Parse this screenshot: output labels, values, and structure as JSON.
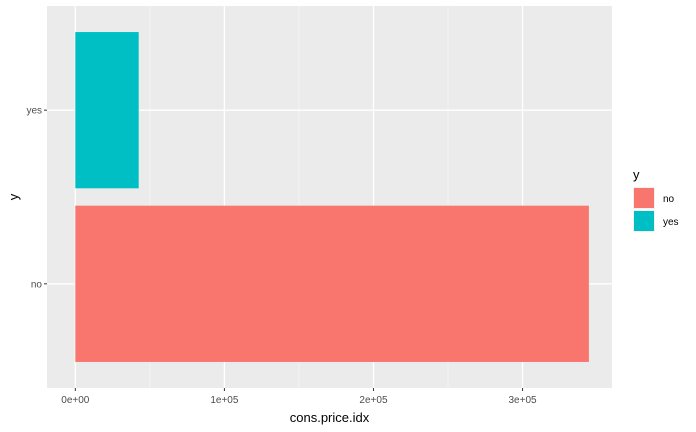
{
  "chart_data": {
    "type": "bar",
    "orientation": "horizontal",
    "categories": [
      "no",
      "yes"
    ],
    "values": [
      344500,
      42500
    ],
    "colors": {
      "no": "#F8766D",
      "yes": "#00BFC4"
    },
    "xlabel": "cons.price.idx",
    "ylabel": "y",
    "xlim": [
      -19000,
      360000
    ],
    "xticks": [
      {
        "value": 0,
        "label": "0e+00"
      },
      {
        "value": 100000,
        "label": "1e+05"
      },
      {
        "value": 200000,
        "label": "2e+05"
      },
      {
        "value": 300000,
        "label": "3e+05"
      }
    ],
    "grid": true,
    "background": "#EBEBEB",
    "legend": {
      "title": "y",
      "position": "right",
      "entries": [
        "no",
        "yes"
      ]
    }
  }
}
